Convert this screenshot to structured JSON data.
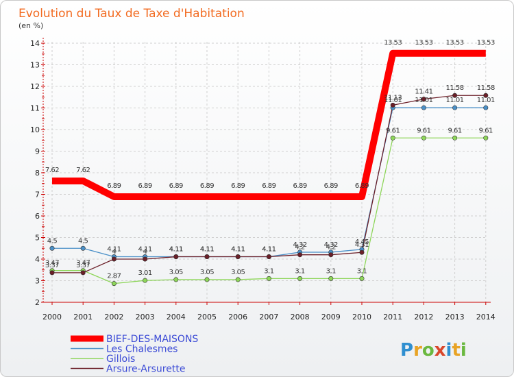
{
  "chart_data": {
    "type": "line",
    "title": "Evolution du Taux de Taxe d'Habitation",
    "unit": "(en %)",
    "brand": "Proxiti",
    "x": [
      "2000",
      "2001",
      "2002",
      "2003",
      "2004",
      "2005",
      "2006",
      "2007",
      "2008",
      "2009",
      "2010",
      "2011",
      "2012",
      "2013",
      "2014"
    ],
    "yticks": [
      "2",
      "3",
      "4",
      "5",
      "6",
      "7",
      "8",
      "9",
      "10",
      "11",
      "12",
      "13",
      "14"
    ],
    "ylim": [
      2,
      14
    ],
    "series": [
      {
        "name": "BIEF-DES-MAISONS",
        "color": "#ff0000",
        "values": [
          7.62,
          7.62,
          6.89,
          6.89,
          6.89,
          6.89,
          6.89,
          6.89,
          6.89,
          6.89,
          6.89,
          13.53,
          13.53,
          13.53,
          13.53
        ],
        "labels": [
          "7.62",
          "7.62",
          "6.89",
          "6.89",
          "6.89",
          "6.89",
          "6.89",
          "6.89",
          "6.89",
          "6.89",
          "6.89",
          "13.53",
          "13.53",
          "13.53",
          "13.53"
        ]
      },
      {
        "name": "Les Chalesmes",
        "color": "#4a90c8",
        "values": [
          4.5,
          4.5,
          4.11,
          4.11,
          4.11,
          4.11,
          4.11,
          4.11,
          4.32,
          4.32,
          4.45,
          11.01,
          11.01,
          11.01,
          11.01
        ],
        "labels": [
          "4.5",
          "4.5",
          "4.11",
          "4.11",
          "4.11",
          "4.11",
          "4.11",
          "4.11",
          "4.32",
          "4.32",
          "4.45",
          "11.01",
          "11.01",
          "11.01",
          "11.01"
        ]
      },
      {
        "name": "Gillois",
        "color": "#8ed65a",
        "values": [
          3.47,
          3.47,
          2.87,
          3.01,
          3.05,
          3.05,
          3.05,
          3.1,
          3.1,
          3.1,
          3.1,
          9.61,
          9.61,
          9.61,
          9.61
        ],
        "labels": [
          "3.47",
          "3.47",
          "2.87",
          "3.01",
          "3.05",
          "3.05",
          "3.05",
          "3.1",
          "3.1",
          "3.1",
          "3.1",
          "9.61",
          "9.61",
          "9.61",
          "9.61"
        ]
      },
      {
        "name": "Arsure-Arsurette",
        "color": "#6b1f28",
        "values": [
          3.37,
          3.37,
          4.0,
          4.0,
          4.11,
          4.11,
          4.11,
          4.11,
          4.2,
          4.2,
          4.31,
          11.13,
          11.41,
          11.58,
          11.58
        ],
        "labels": [
          "3.37",
          "3.37",
          "4",
          "4",
          "4.11",
          "4.11",
          "4.11",
          "4.11",
          "4.2",
          "4.2",
          "4.31",
          "11.13",
          "11.41",
          "11.58",
          "11.58"
        ]
      }
    ]
  }
}
